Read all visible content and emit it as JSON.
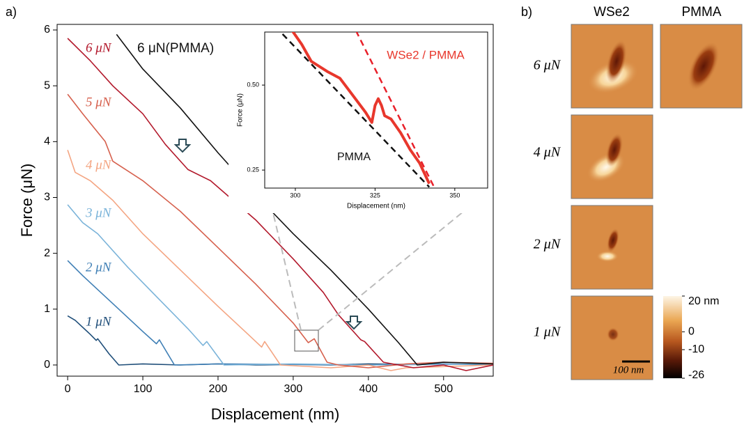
{
  "panel_labels": [
    "a)",
    "b)"
  ],
  "chart_data": [
    {
      "type": "line",
      "xlabel": "Displacement (nm)",
      "ylabel": "Force (μN)",
      "xlim": [
        -14,
        566
      ],
      "ylim": [
        -0.2,
        6.1
      ],
      "xticks": [
        0,
        100,
        200,
        300,
        400,
        500
      ],
      "yticks": [
        0,
        1,
        2,
        3,
        4,
        5,
        6
      ],
      "series": [
        {
          "name": "1 μN",
          "color": "#1f4e79",
          "x": [
            0,
            10,
            30,
            38,
            40,
            55,
            68,
            100,
            150,
            200,
            250,
            300,
            350,
            400,
            450,
            500,
            566
          ],
          "values": [
            0.88,
            0.8,
            0.55,
            0.44,
            0.47,
            0.2,
            0,
            0.02,
            0,
            0.02,
            0,
            0.01,
            0,
            0.02,
            0.01,
            0.02,
            0
          ]
        },
        {
          "name": "2 μN",
          "color": "#3f7fb5",
          "x": [
            0,
            20,
            60,
            100,
            118,
            122,
            142,
            200,
            300,
            400,
            500,
            566
          ],
          "values": [
            1.87,
            1.6,
            1.1,
            0.6,
            0.38,
            0.45,
            0,
            0.02,
            0.01,
            0,
            0.02,
            0.01
          ]
        },
        {
          "name": "3 μN",
          "color": "#7ab3d9",
          "x": [
            0,
            20,
            40,
            80,
            120,
            160,
            180,
            185,
            208,
            300,
            400,
            500,
            566
          ],
          "values": [
            2.87,
            2.55,
            2.35,
            1.75,
            1.2,
            0.65,
            0.35,
            0.42,
            0,
            0.02,
            0,
            0.01,
            0.02
          ]
        },
        {
          "name": "4 μN",
          "color": "#f4a582",
          "x": [
            0,
            10,
            30,
            60,
            100,
            150,
            200,
            240,
            258,
            262,
            283,
            350,
            400,
            430,
            450,
            566
          ],
          "values": [
            3.85,
            3.45,
            3.3,
            2.95,
            2.35,
            1.7,
            1.05,
            0.55,
            0.32,
            0.42,
            0,
            -0.05,
            0,
            -0.1,
            -0.05,
            0
          ]
        },
        {
          "name": "5 μN",
          "color": "#d6604d",
          "x": [
            0,
            20,
            50,
            60,
            100,
            150,
            200,
            250,
            300,
            320,
            328,
            345,
            360,
            400,
            450,
            500,
            566
          ],
          "values": [
            4.85,
            4.5,
            4.0,
            3.65,
            3.3,
            2.75,
            2.1,
            1.45,
            0.75,
            0.4,
            0.47,
            0.05,
            0,
            -0.05,
            0.02,
            0.05,
            0.03
          ]
        },
        {
          "name": "6 μN",
          "color": "#b2182b",
          "x": [
            0,
            30,
            60,
            100,
            130,
            160,
            190,
            250,
            300,
            340,
            360,
            390,
            395,
            420,
            460,
            500,
            530,
            566
          ],
          "values": [
            5.85,
            5.45,
            5.0,
            4.5,
            3.95,
            3.5,
            3.3,
            2.6,
            1.9,
            1.3,
            0.9,
            0.45,
            0.42,
            0.05,
            -0.05,
            0,
            -0.1,
            0
          ]
        },
        {
          "name": "6 μN(PMMA)",
          "color": "#111111",
          "x": [
            65,
            100,
            150,
            200,
            250,
            300,
            350,
            400,
            440,
            465,
            500,
            566
          ],
          "values": [
            5.92,
            5.3,
            4.6,
            3.8,
            3.05,
            2.35,
            1.7,
            1.0,
            0.4,
            0,
            0.05,
            0.02
          ]
        }
      ]
    },
    {
      "type": "line",
      "xlabel": "Displacement (nm)",
      "ylabel": "Force (μN)",
      "xlim": [
        290.4,
        360.3
      ],
      "ylim": [
        0.197,
        0.656
      ],
      "xticks": [
        300,
        325,
        350
      ],
      "yticks": [
        0.25,
        {
          "value": 0.5,
          "label": "0.50"
        }
      ],
      "series": [
        {
          "name": "WSe2 / PMMA",
          "color": "#e8372c",
          "width": 4,
          "x": [
            299,
            302,
            305,
            310,
            314,
            318,
            322,
            324,
            325,
            326,
            327,
            328,
            330,
            333,
            336,
            339,
            342
          ],
          "values": [
            0.66,
            0.62,
            0.57,
            0.54,
            0.52,
            0.47,
            0.42,
            0.39,
            0.44,
            0.46,
            0.44,
            0.41,
            0.4,
            0.36,
            0.31,
            0.27,
            0.21
          ]
        },
        {
          "name": "PMMA",
          "color": "#111111",
          "dash": true,
          "x": [
            296,
            342
          ],
          "values": [
            0.65,
            0.2
          ]
        },
        {
          "name": "WSe2 / PMMA",
          "color": "#e8202a",
          "dash": true,
          "x": [
            319,
            343.5
          ],
          "values": [
            0.66,
            0.2
          ]
        }
      ]
    }
  ],
  "afm": {
    "columns": [
      "WSe2",
      "PMMA"
    ],
    "rows": [
      "6 μN",
      "4 μN",
      "2 μN",
      "1 μN"
    ],
    "colorbar": {
      "lim": [
        -26,
        20
      ],
      "ticks": [
        {
          "value": 20,
          "label": "20 nm"
        },
        0,
        -10,
        -26
      ]
    },
    "scale_bar": "100 nm"
  }
}
